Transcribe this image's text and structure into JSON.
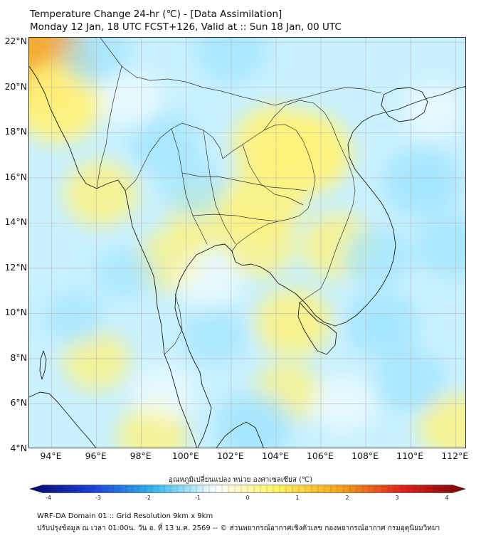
{
  "header": {
    "title_line1": "Temperature Change 24-hr (℃) - [Data Assimilation]",
    "title_line2": "Monday 12 Jan, 18 UTC FCST+126, Valid at :: Sun 18 Jan, 00 UTC"
  },
  "map": {
    "extent": {
      "lon_min": 93,
      "lon_max": 112.5,
      "lat_min": 4,
      "lat_max": 22.2
    },
    "lat_labels": [
      {
        "value": 22,
        "text": "22°N"
      },
      {
        "value": 20,
        "text": "20°N"
      },
      {
        "value": 18,
        "text": "18°N"
      },
      {
        "value": 16,
        "text": "16°N"
      },
      {
        "value": 14,
        "text": "14°N"
      },
      {
        "value": 12,
        "text": "12°N"
      },
      {
        "value": 10,
        "text": "10°N"
      },
      {
        "value": 8,
        "text": "8°N"
      },
      {
        "value": 6,
        "text": "6°N"
      },
      {
        "value": 4,
        "text": "4°N"
      }
    ],
    "lon_labels": [
      {
        "value": 94,
        "text": "94°E"
      },
      {
        "value": 96,
        "text": "96°E"
      },
      {
        "value": 98,
        "text": "98°E"
      },
      {
        "value": 100,
        "text": "100°E"
      },
      {
        "value": 102,
        "text": "102°E"
      },
      {
        "value": 104,
        "text": "104°E"
      },
      {
        "value": 106,
        "text": "106°E"
      },
      {
        "value": 108,
        "text": "108°E"
      },
      {
        "value": 110,
        "text": "110°E"
      },
      {
        "value": 112,
        "text": "112°E"
      }
    ],
    "field_colors": {
      "cold": "#9fe3ff",
      "neutral": "#ffffff",
      "warm": "#fff27a",
      "hot": "#f5a623"
    },
    "anomalies": [
      {
        "lon": 93.3,
        "lat": 21.2,
        "value": 2.2
      },
      {
        "lon": 94.3,
        "lat": 19.3,
        "value": 1.5
      },
      {
        "lon": 96.2,
        "lat": 15.3,
        "value": 1.0
      },
      {
        "lon": 104.0,
        "lat": 17.5,
        "value": 1.4
      },
      {
        "lon": 105.3,
        "lat": 17.1,
        "value": 1.6
      },
      {
        "lon": 103.5,
        "lat": 15.0,
        "value": 1.2
      },
      {
        "lon": 100.8,
        "lat": 14.3,
        "value": 1.0
      },
      {
        "lon": 103.3,
        "lat": 13.0,
        "value": 0.9
      },
      {
        "lon": 106.8,
        "lat": 13.0,
        "value": 1.0
      },
      {
        "lon": 104.8,
        "lat": 9.6,
        "value": 1.1
      },
      {
        "lon": 99.2,
        "lat": 12.3,
        "value": 0.8
      },
      {
        "lon": 96.0,
        "lat": 7.9,
        "value": 0.8
      },
      {
        "lon": 104.5,
        "lat": 6.5,
        "value": 0.8
      },
      {
        "lon": 98.5,
        "lat": 4.6,
        "value": 0.9
      },
      {
        "lon": 112.0,
        "lat": 5.0,
        "value": 1.0
      },
      {
        "lon": 102.0,
        "lat": 21.6,
        "value": -0.9
      },
      {
        "lon": 96.0,
        "lat": 21.4,
        "value": -0.8
      },
      {
        "lon": 99.0,
        "lat": 17.5,
        "value": -0.9
      },
      {
        "lon": 100.3,
        "lat": 15.5,
        "value": -0.7
      },
      {
        "lon": 97.3,
        "lat": 11.8,
        "value": -0.6
      },
      {
        "lon": 101.3,
        "lat": 9.0,
        "value": -0.7
      },
      {
        "lon": 108.7,
        "lat": 9.5,
        "value": -1.0
      },
      {
        "lon": 108.5,
        "lat": 12.5,
        "value": -0.8
      },
      {
        "lon": 110.5,
        "lat": 15.8,
        "value": -1.1
      },
      {
        "lon": 111.8,
        "lat": 13.0,
        "value": -0.9
      },
      {
        "lon": 103.0,
        "lat": 5.0,
        "value": -1.1
      },
      {
        "lon": 110.0,
        "lat": 7.0,
        "value": -0.9
      },
      {
        "lon": 95.0,
        "lat": 9.8,
        "value": -0.6
      }
    ]
  },
  "colorbar": {
    "title": "อุณหภูมิเปลี่ยนแปลง หน่วย องศาเซลเซียส (℃)",
    "min": -4,
    "max": 4,
    "ticks": [
      "-4",
      "-3",
      "-2",
      "-1",
      "0",
      "1",
      "2",
      "3",
      "4"
    ],
    "colors": [
      "#08086e",
      "#1d3fd8",
      "#35b9ee",
      "#ffffff",
      "#fff35a",
      "#f7a21a",
      "#e02020",
      "#7a0505"
    ]
  },
  "footer": {
    "line1": "WRF-DA Domain 01 :: Grid Resolution 9km x 9km",
    "line2": "ปรับปรุงข้อมูล ณ เวลา 01:00น. วัน อ. ที่ 13 ม.ค. 2569 -- © ส่วนพยากรณ์อากาศเชิงตัวเลข กองพยากรณ์อากาศ กรมอุตุนิยมวิทยา"
  }
}
